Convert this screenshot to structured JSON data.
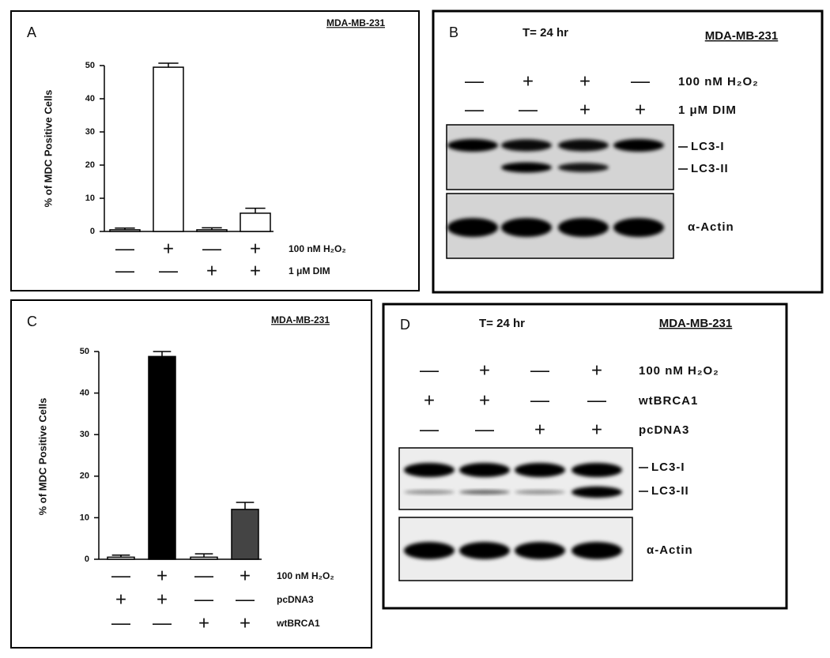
{
  "chart_data": [
    {
      "type": "bar",
      "panel": "A",
      "cell_line": "MDA-MB-231",
      "ylabel": "% of MDC Positive Cells",
      "values": [
        0.5,
        49.5,
        0.5,
        5.5
      ],
      "errors": [
        0.5,
        1.2,
        0.6,
        1.5
      ],
      "colors": [
        "#ffffff",
        "#ffffff",
        "#ffffff",
        "#ffffff"
      ],
      "ylim": [
        0,
        50
      ],
      "yticks": [
        0,
        10,
        20,
        30,
        40,
        50
      ],
      "conditions": [
        {
          "label": "100 nM H₂O₂",
          "signs": [
            "—",
            "+",
            "—",
            "+"
          ]
        },
        {
          "label": "1 μM DIM",
          "signs": [
            "—",
            "—",
            "+",
            "+"
          ]
        }
      ]
    },
    {
      "type": "bar",
      "panel": "C",
      "cell_line": "MDA-MB-231",
      "ylabel": "% of MDC Positive Cells",
      "values": [
        0.5,
        48.8,
        0.5,
        12
      ],
      "errors": [
        0.5,
        1.2,
        0.8,
        1.7
      ],
      "colors": [
        "#ffffff",
        "#000000",
        "#ffffff",
        "#444444"
      ],
      "ylim": [
        0,
        50
      ],
      "yticks": [
        0,
        10,
        20,
        30,
        40,
        50
      ],
      "conditions": [
        {
          "label": "100 nM H₂O₂",
          "signs": [
            "—",
            "+",
            "—",
            "+"
          ]
        },
        {
          "label": "pcDNA3",
          "signs": [
            "+",
            "+",
            "—",
            "—"
          ]
        },
        {
          "label": "wtBRCA1",
          "signs": [
            "—",
            "—",
            "+",
            "+"
          ]
        }
      ]
    }
  ],
  "blots": [
    {
      "panel": "B",
      "time": "T= 24 hr",
      "cell_line": "MDA-MB-231",
      "conditions": [
        {
          "label": "100 nM H₂O₂",
          "signs": [
            "—",
            "+",
            "+",
            "—"
          ]
        },
        {
          "label": "1 μM DIM",
          "signs": [
            "—",
            "—",
            "+",
            "+"
          ]
        }
      ],
      "bands": [
        "LC3-I",
        "LC3-II",
        "α-Actin"
      ]
    },
    {
      "panel": "D",
      "time": "T= 24 hr",
      "cell_line": "MDA-MB-231",
      "conditions": [
        {
          "label": "100 nM H₂O₂",
          "signs": [
            "—",
            "+",
            "—",
            "+"
          ]
        },
        {
          "label": "wtBRCA1",
          "signs": [
            "+",
            "+",
            "—",
            "—"
          ]
        },
        {
          "label": "pcDNA3",
          "signs": [
            "—",
            "—",
            "+",
            "+"
          ]
        }
      ],
      "bands": [
        "LC3-I",
        "LC3-II",
        "α-Actin"
      ]
    }
  ]
}
